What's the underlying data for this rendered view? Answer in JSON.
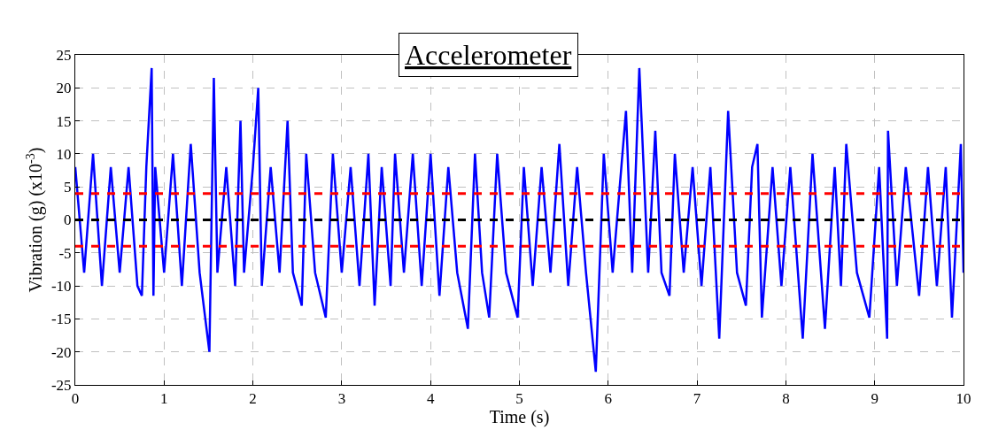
{
  "chart_data": {
    "type": "line",
    "title": "Accelerometer",
    "xlabel": "Time (s)",
    "ylabel": "Vibration (g) (x10$^{-3}$)",
    "xlim": [
      0,
      10
    ],
    "ylim": [
      -25,
      25
    ],
    "xticks": [
      0,
      1,
      2,
      3,
      4,
      5,
      6,
      7,
      8,
      9,
      10
    ],
    "yticks": [
      -25,
      -20,
      -15,
      -10,
      -5,
      0,
      5,
      10,
      15,
      20,
      25
    ],
    "grid": true,
    "marker": "none",
    "line_style": "solid",
    "series": [
      {
        "color": "#0000ff",
        "x": [
          0,
          0.1,
          0.2,
          0.3,
          0.4,
          0.5,
          0.6,
          0.7,
          0.75,
          0.8,
          0.86,
          0.88,
          0.9,
          1.0,
          1.1,
          1.2,
          1.3,
          1.4,
          1.51,
          1.56,
          1.6,
          1.7,
          1.8,
          1.86,
          1.9,
          2.0,
          2.06,
          2.1,
          2.2,
          2.3,
          2.39,
          2.45,
          2.55,
          2.6,
          2.7,
          2.82,
          2.9,
          3.0,
          3.1,
          3.2,
          3.3,
          3.37,
          3.45,
          3.55,
          3.6,
          3.7,
          3.8,
          3.9,
          4.0,
          4.1,
          4.2,
          4.3,
          4.42,
          4.5,
          4.58,
          4.66,
          4.75,
          4.85,
          4.98,
          5.05,
          5.15,
          5.25,
          5.35,
          5.45,
          5.55,
          5.65,
          5.75,
          5.86,
          5.95,
          6.05,
          6.2,
          6.27,
          6.35,
          6.45,
          6.53,
          6.6,
          6.69,
          6.75,
          6.85,
          6.95,
          7.05,
          7.15,
          7.25,
          7.35,
          7.45,
          7.55,
          7.62,
          7.68,
          7.73,
          7.85,
          7.95,
          8.05,
          8.19,
          8.3,
          8.44,
          8.55,
          8.62,
          8.68,
          8.8,
          8.94,
          9.05,
          9.14,
          9.15,
          9.25,
          9.35,
          9.5,
          9.6,
          9.7,
          9.8,
          9.87,
          9.97,
          10
        ],
        "values": [
          8,
          -8,
          10,
          -10,
          8,
          -8,
          8,
          -10,
          -11.5,
          8,
          23,
          -11.5,
          8,
          -8,
          10,
          -10,
          11.5,
          -8,
          -20,
          21.5,
          -8,
          8,
          -10,
          15,
          -8,
          8,
          20,
          -10,
          8,
          -8,
          15,
          -8,
          -13,
          10,
          -8,
          -14.8,
          10,
          -8,
          8,
          -10,
          10,
          -13,
          8,
          -10,
          10,
          -8,
          10,
          -10,
          10,
          -11.5,
          8,
          -8,
          -16.5,
          10,
          -8,
          -14.8,
          10,
          -8,
          -14.8,
          8,
          -10,
          8,
          -8,
          11.5,
          -10,
          8,
          -8,
          -23,
          10,
          -8,
          16.5,
          -8,
          23,
          -8,
          13.5,
          -8,
          -11.5,
          10,
          -8,
          8,
          -10,
          8,
          -18,
          16.5,
          -8,
          -13,
          8,
          11.5,
          -14.8,
          8,
          -10,
          8,
          -18,
          10,
          -16.5,
          8,
          -10,
          11.5,
          -8,
          -14.8,
          8,
          -18,
          13.5,
          -10,
          8,
          -11.5,
          8,
          -10,
          8,
          -14.8,
          11.5,
          -8
        ]
      }
    ],
    "ref_lines": [
      {
        "axis": "y",
        "value": 0,
        "color": "#000000",
        "line_style": "dashed"
      },
      {
        "axis": "y",
        "value": 4,
        "color": "#ff0000",
        "line_style": "dashed"
      },
      {
        "axis": "y",
        "value": -4,
        "color": "#ff0000",
        "line_style": "dashed"
      }
    ]
  }
}
